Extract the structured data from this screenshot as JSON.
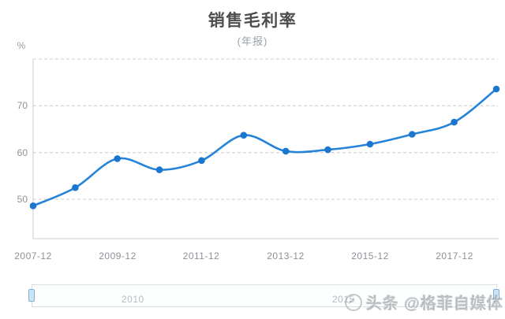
{
  "page": {
    "background": "#ffffff"
  },
  "header": {
    "title": "销售毛利率",
    "subtitle": "(年报)"
  },
  "y_axis": {
    "unit": "%",
    "tick_labels": [
      "50",
      "60",
      "70"
    ]
  },
  "x_axis": {
    "tick_labels": [
      "2007-12",
      "2009-12",
      "2011-12",
      "2013-12",
      "2015-12",
      "2017-12"
    ]
  },
  "chart_data": {
    "type": "line",
    "title": "销售毛利率",
    "subtitle": "(年报)",
    "ylabel": "%",
    "xlabel": "",
    "categories": [
      "2007-12",
      "2008-12",
      "2009-12",
      "2010-12",
      "2011-12",
      "2012-12",
      "2013-12",
      "2014-12",
      "2015-12",
      "2016-12",
      "2017-12",
      "2018-12"
    ],
    "series": [
      {
        "name": "销售毛利率",
        "values": [
          48.6,
          52.5,
          58.7,
          56.3,
          58.3,
          63.7,
          60.3,
          60.6,
          61.8,
          63.9,
          66.5,
          73.6
        ]
      }
    ],
    "ylim": [
      40,
      80
    ],
    "gridline_values": [
      50,
      60,
      70,
      80
    ],
    "grid": "dashed",
    "legend": "none",
    "smooth": true
  },
  "datazoom": {
    "tick_labels": [
      "2010",
      "2015"
    ]
  },
  "watermark": {
    "icon": "toutiao-logo",
    "text": "头条 @格菲自媒体"
  },
  "colors": {
    "line": "#2583d8",
    "point": "#1b76cd",
    "gridline": "#cccccc",
    "axis_line": "#cccccc",
    "spark_line": "#d4d9de",
    "dz_divider": "#e3e6ea",
    "handle_fill": "#cde4f4",
    "handle_border": "#7db0d8"
  }
}
